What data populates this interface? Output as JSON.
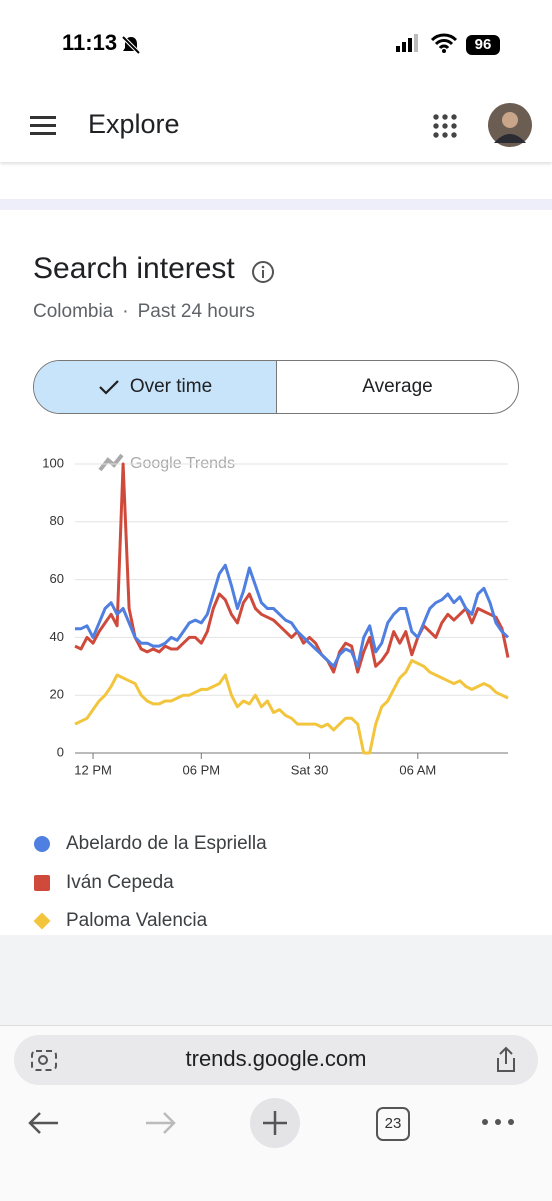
{
  "status_bar": {
    "time": "11:13",
    "battery": "96"
  },
  "header": {
    "title": "Explore"
  },
  "card": {
    "title": "Search interest",
    "location": "Colombia",
    "separator": "·",
    "period": "Past 24 hours",
    "toggle": {
      "selected": "Over time",
      "other": "Average"
    }
  },
  "chart_data": {
    "type": "line",
    "watermark": "Google Trends",
    "categories": [
      null,
      null,
      null,
      "12 PM",
      null,
      null,
      null,
      null,
      null,
      null,
      null,
      null,
      null,
      null,
      null,
      null,
      null,
      null,
      null,
      null,
      null,
      "06 PM",
      null,
      null,
      null,
      null,
      null,
      null,
      null,
      null,
      null,
      null,
      null,
      null,
      null,
      null,
      null,
      null,
      null,
      "Sat 30",
      null,
      null,
      null,
      null,
      null,
      null,
      null,
      null,
      null,
      null,
      null,
      null,
      null,
      null,
      null,
      null,
      null,
      "06 AM",
      null,
      null,
      null,
      null,
      null,
      null,
      null,
      null,
      null,
      null,
      null,
      null,
      null,
      null,
      null
    ],
    "ylim": [
      0,
      100
    ],
    "yticks": [
      0,
      20,
      40,
      60,
      80,
      100
    ],
    "grid": true,
    "series": [
      {
        "name": "Abelardo de la Espriella",
        "color": "#4f7fe0",
        "values": [
          43,
          43,
          44,
          40,
          45,
          50,
          52,
          48,
          50,
          45,
          40,
          38,
          38,
          37,
          37,
          38,
          40,
          39,
          42,
          45,
          46,
          45,
          48,
          55,
          62,
          65,
          58,
          50,
          56,
          64,
          58,
          52,
          50,
          50,
          48,
          46,
          45,
          42,
          40,
          38,
          36,
          34,
          32,
          30,
          34,
          36,
          35,
          30,
          40,
          44,
          35,
          38,
          45,
          48,
          50,
          50,
          42,
          40,
          45,
          50,
          52,
          53,
          55,
          52,
          54,
          50,
          48,
          55,
          57,
          52,
          45,
          42,
          40
        ]
      },
      {
        "name": "Iván Cepeda",
        "color": "#d04a3c",
        "values": [
          37,
          36,
          40,
          38,
          42,
          45,
          48,
          44,
          100,
          50,
          40,
          36,
          35,
          36,
          35,
          37,
          36,
          36,
          38,
          40,
          40,
          38,
          42,
          50,
          55,
          53,
          48,
          45,
          52,
          55,
          50,
          48,
          47,
          46,
          44,
          42,
          40,
          42,
          38,
          40,
          38,
          34,
          32,
          28,
          35,
          38,
          37,
          28,
          35,
          40,
          30,
          32,
          35,
          42,
          38,
          42,
          34,
          40,
          44,
          42,
          40,
          45,
          48,
          46,
          48,
          50,
          45,
          50,
          49,
          48,
          47,
          43,
          33
        ]
      },
      {
        "name": "Paloma Valencia",
        "color": "#f2c53d",
        "values": [
          10,
          11,
          12,
          15,
          18,
          20,
          23,
          27,
          26,
          25,
          24,
          20,
          18,
          17,
          17,
          18,
          18,
          19,
          20,
          20,
          21,
          22,
          22,
          23,
          24,
          27,
          20,
          16,
          18,
          17,
          20,
          16,
          18,
          14,
          15,
          13,
          12,
          10,
          10,
          10,
          10,
          9,
          10,
          8,
          10,
          12,
          12,
          10,
          0,
          0,
          10,
          16,
          18,
          22,
          26,
          28,
          32,
          31,
          30,
          28,
          27,
          26,
          25,
          24,
          25,
          23,
          22,
          23,
          24,
          23,
          21,
          20,
          19
        ]
      }
    ]
  },
  "browser": {
    "url": "trends.google.com",
    "tabs": "23"
  }
}
